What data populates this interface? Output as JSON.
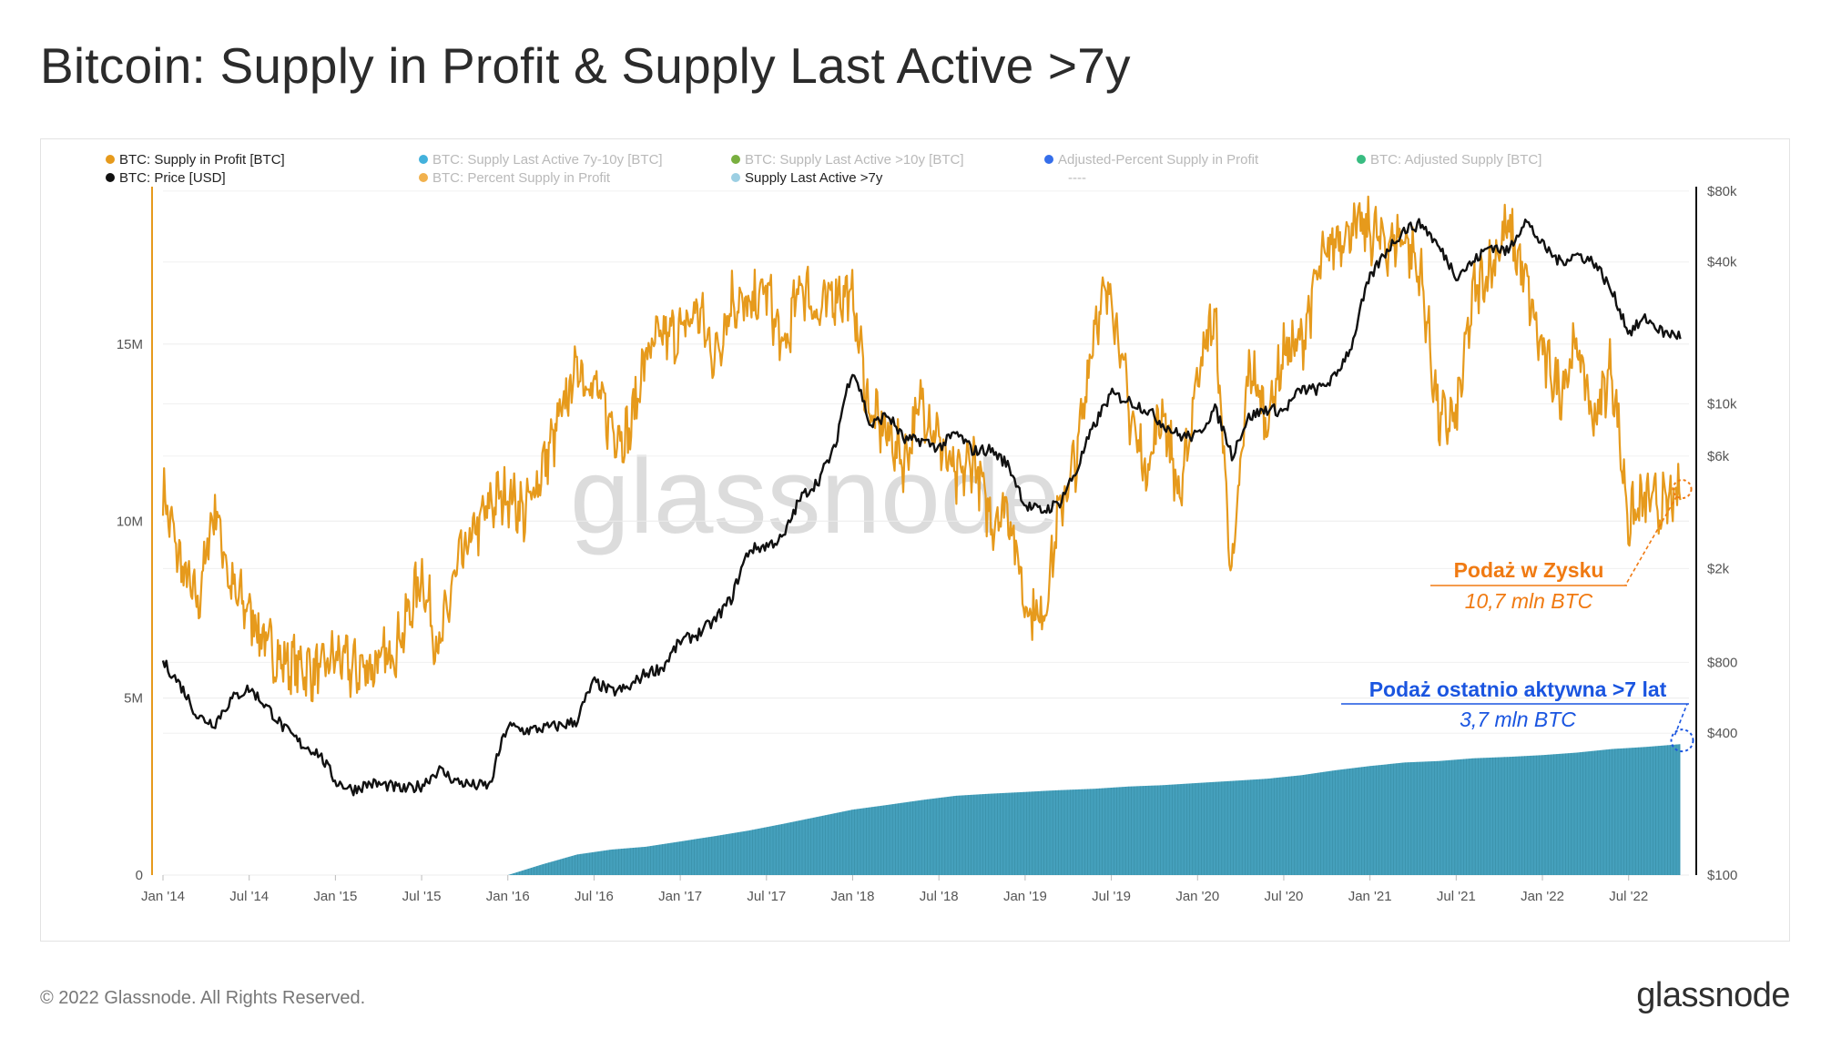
{
  "page": {
    "title": "Bitcoin: Supply in Profit & Supply Last Active >7y",
    "footer_copyright": "© 2022 Glassnode. All Rights Reserved.",
    "footer_logo": "glassnode",
    "watermark": "glassnode"
  },
  "colors": {
    "supply_profit": "#e69a1c",
    "price": "#111111",
    "supply_7y": "#3b9bb8",
    "annot_orange": "#f07a12",
    "annot_blue": "#1a55e0"
  },
  "chart_data": {
    "type": "line",
    "title": "Bitcoin: Supply in Profit & Supply Last Active >7y",
    "legend": [
      {
        "label": "BTC: Supply in Profit [BTC]",
        "color": "#e69a1c",
        "active": true
      },
      {
        "label": "BTC: Supply Last Active 7y-10y [BTC]",
        "color": "#2fa8d8",
        "active": false
      },
      {
        "label": "BTC: Supply Last Active >10y [BTC]",
        "color": "#6aa62a",
        "active": false
      },
      {
        "label": "Adjusted-Percent Supply in Profit",
        "color": "#1f5ee8",
        "active": false
      },
      {
        "label": "BTC: Adjusted Supply [BTC]",
        "color": "#22b573",
        "active": false
      },
      {
        "label": "BTC: Price [USD]",
        "color": "#111111",
        "active": true
      },
      {
        "label": "BTC: Percent Supply in Profit",
        "color": "#f0a83a",
        "active": false
      },
      {
        "label": "Supply Last Active >7y",
        "color": "#9ccfe3",
        "active": true
      },
      {
        "label": "----",
        "color": "",
        "active": false
      }
    ],
    "x_axis": {
      "range": [
        2014.0,
        2022.85
      ],
      "ticks": [
        {
          "label": "Jan '14",
          "value": 2014.0
        },
        {
          "label": "Jul '14",
          "value": 2014.5
        },
        {
          "label": "Jan '15",
          "value": 2015.0
        },
        {
          "label": "Jul '15",
          "value": 2015.5
        },
        {
          "label": "Jan '16",
          "value": 2016.0
        },
        {
          "label": "Jul '16",
          "value": 2016.5
        },
        {
          "label": "Jan '17",
          "value": 2017.0
        },
        {
          "label": "Jul '17",
          "value": 2017.5
        },
        {
          "label": "Jan '18",
          "value": 2018.0
        },
        {
          "label": "Jul '18",
          "value": 2018.5
        },
        {
          "label": "Jan '19",
          "value": 2019.0
        },
        {
          "label": "Jul '19",
          "value": 2019.5
        },
        {
          "label": "Jan '20",
          "value": 2020.0
        },
        {
          "label": "Jul '20",
          "value": 2020.5
        },
        {
          "label": "Jan '21",
          "value": 2021.0
        },
        {
          "label": "Jul '21",
          "value": 2021.5
        },
        {
          "label": "Jan '22",
          "value": 2022.0
        },
        {
          "label": "Jul '22",
          "value": 2022.5
        }
      ]
    },
    "y_left": {
      "unit": "BTC",
      "range": [
        0,
        19500000
      ],
      "ticks": [
        {
          "label": "0",
          "value": 0
        },
        {
          "label": "5M",
          "value": 5000000
        },
        {
          "label": "10M",
          "value": 10000000
        },
        {
          "label": "15M",
          "value": 15000000
        }
      ]
    },
    "y_right": {
      "unit": "USD",
      "scale": "log",
      "range": [
        100,
        85000
      ],
      "ticks": [
        {
          "label": "$100",
          "value": 100
        },
        {
          "label": "$400",
          "value": 400
        },
        {
          "label": "$800",
          "value": 800
        },
        {
          "label": "$2k",
          "value": 2000
        },
        {
          "label": "$6k",
          "value": 6000
        },
        {
          "label": "$10k",
          "value": 10000
        },
        {
          "label": "$40k",
          "value": 40000
        },
        {
          "label": "$80k",
          "value": 80000
        }
      ]
    },
    "series": [
      {
        "name": "BTC: Supply in Profit [BTC]",
        "axis": "left",
        "x": [
          2014.0,
          2014.1,
          2014.2,
          2014.3,
          2014.4,
          2014.5,
          2014.6,
          2014.7,
          2014.8,
          2014.9,
          2015.0,
          2015.1,
          2015.2,
          2015.3,
          2015.4,
          2015.5,
          2015.6,
          2015.7,
          2015.8,
          2015.9,
          2016.0,
          2016.1,
          2016.2,
          2016.3,
          2016.4,
          2016.5,
          2016.6,
          2016.7,
          2016.8,
          2016.9,
          2017.0,
          2017.1,
          2017.2,
          2017.3,
          2017.4,
          2017.5,
          2017.6,
          2017.7,
          2017.8,
          2017.9,
          2018.0,
          2018.1,
          2018.2,
          2018.3,
          2018.4,
          2018.5,
          2018.6,
          2018.7,
          2018.8,
          2018.9,
          2019.0,
          2019.1,
          2019.2,
          2019.3,
          2019.4,
          2019.5,
          2019.6,
          2019.7,
          2019.8,
          2019.9,
          2020.0,
          2020.1,
          2020.2,
          2020.3,
          2020.4,
          2020.5,
          2020.6,
          2020.7,
          2020.8,
          2020.9,
          2021.0,
          2021.1,
          2021.2,
          2021.3,
          2021.4,
          2021.5,
          2021.6,
          2021.7,
          2021.8,
          2021.9,
          2022.0,
          2022.1,
          2022.2,
          2022.3,
          2022.4,
          2022.5,
          2022.6,
          2022.7,
          2022.8
        ],
        "values": [
          10800000,
          8800000,
          7600000,
          10500000,
          8000000,
          7500000,
          6500000,
          6000000,
          5900000,
          5700000,
          6200000,
          5800000,
          5900000,
          6100000,
          7000000,
          8500000,
          6300000,
          8600000,
          9600000,
          10500000,
          10800000,
          10200000,
          11500000,
          12800000,
          14400000,
          13800000,
          12700000,
          12400000,
          14700000,
          15200000,
          15300000,
          16000000,
          14600000,
          16300000,
          15900000,
          16600000,
          14700000,
          16800000,
          15800000,
          16500000,
          16300000,
          13000000,
          12500000,
          11700000,
          13400000,
          12300000,
          11100000,
          11800000,
          10000000,
          10500000,
          7700000,
          7200000,
          10300000,
          11800000,
          15600000,
          16600000,
          13200000,
          11400000,
          13200000,
          10500000,
          14300000,
          15800000,
          8300000,
          14500000,
          12800000,
          14800000,
          15000000,
          17000000,
          18000000,
          18300000,
          18200000,
          17800000,
          18100000,
          16800000,
          12800000,
          12900000,
          16400000,
          17200000,
          18300000,
          16800000,
          14700000,
          13700000,
          15000000,
          12800000,
          14400000,
          10000000,
          10600000,
          10400000,
          10700000
        ]
      },
      {
        "name": "BTC: Price [USD]",
        "axis": "right",
        "x": [
          2014.0,
          2014.1,
          2014.2,
          2014.3,
          2014.4,
          2014.5,
          2014.6,
          2014.7,
          2014.8,
          2014.9,
          2015.0,
          2015.1,
          2015.2,
          2015.3,
          2015.4,
          2015.5,
          2015.6,
          2015.7,
          2015.8,
          2015.9,
          2016.0,
          2016.1,
          2016.2,
          2016.3,
          2016.4,
          2016.5,
          2016.6,
          2016.7,
          2016.8,
          2016.9,
          2017.0,
          2017.1,
          2017.2,
          2017.3,
          2017.4,
          2017.5,
          2017.6,
          2017.7,
          2017.8,
          2017.9,
          2018.0,
          2018.1,
          2018.2,
          2018.3,
          2018.4,
          2018.5,
          2018.6,
          2018.7,
          2018.8,
          2018.9,
          2019.0,
          2019.1,
          2019.2,
          2019.3,
          2019.4,
          2019.5,
          2019.6,
          2019.7,
          2019.8,
          2019.9,
          2020.0,
          2020.1,
          2020.2,
          2020.3,
          2020.4,
          2020.5,
          2020.6,
          2020.7,
          2020.8,
          2020.9,
          2021.0,
          2021.1,
          2021.2,
          2021.3,
          2021.4,
          2021.5,
          2021.6,
          2021.7,
          2021.8,
          2021.9,
          2022.0,
          2022.1,
          2022.2,
          2022.3,
          2022.4,
          2022.5,
          2022.6,
          2022.7,
          2022.8
        ],
        "values": [
          800,
          640,
          470,
          440,
          560,
          620,
          520,
          420,
          360,
          330,
          250,
          230,
          245,
          240,
          230,
          240,
          280,
          250,
          240,
          240,
          430,
          410,
          420,
          430,
          450,
          660,
          600,
          620,
          720,
          760,
          980,
          1050,
          1200,
          1500,
          2400,
          2500,
          2700,
          4000,
          4700,
          6500,
          14000,
          8000,
          9000,
          7000,
          7000,
          6500,
          7500,
          6300,
          6400,
          5500,
          3700,
          3500,
          3800,
          5200,
          8000,
          11000,
          10300,
          9500,
          8200,
          7300,
          7300,
          9500,
          6000,
          8800,
          9500,
          9300,
          11500,
          11500,
          13000,
          18000,
          34000,
          45000,
          55000,
          58000,
          46000,
          35000,
          40000,
          47000,
          44000,
          60000,
          47000,
          40000,
          43000,
          40000,
          30000,
          20000,
          23000,
          20000,
          19500
        ]
      },
      {
        "name": "Supply Last Active >7y",
        "axis": "left",
        "x": [
          2016.0,
          2016.2,
          2016.4,
          2016.6,
          2016.8,
          2017.0,
          2017.2,
          2017.4,
          2017.6,
          2017.8,
          2018.0,
          2018.2,
          2018.4,
          2018.6,
          2018.8,
          2019.0,
          2019.2,
          2019.4,
          2019.6,
          2019.8,
          2020.0,
          2020.2,
          2020.4,
          2020.6,
          2020.8,
          2021.0,
          2021.2,
          2021.4,
          2021.6,
          2021.8,
          2022.0,
          2022.2,
          2022.4,
          2022.6,
          2022.8
        ],
        "values": [
          0,
          300000,
          580000,
          720000,
          800000,
          950000,
          1100000,
          1260000,
          1450000,
          1650000,
          1850000,
          1980000,
          2120000,
          2240000,
          2300000,
          2350000,
          2400000,
          2440000,
          2500000,
          2540000,
          2600000,
          2660000,
          2720000,
          2820000,
          2960000,
          3080000,
          3180000,
          3220000,
          3300000,
          3340000,
          3390000,
          3460000,
          3560000,
          3620000,
          3700000
        ]
      }
    ],
    "annotations": [
      {
        "title": "Podaż w Zysku",
        "subtitle": "10,7 mln BTC",
        "color": "#f07a12"
      },
      {
        "title": "Podaż ostatnio aktywna >7 lat",
        "subtitle": "3,7 mln BTC",
        "color": "#1a55e0"
      }
    ]
  }
}
